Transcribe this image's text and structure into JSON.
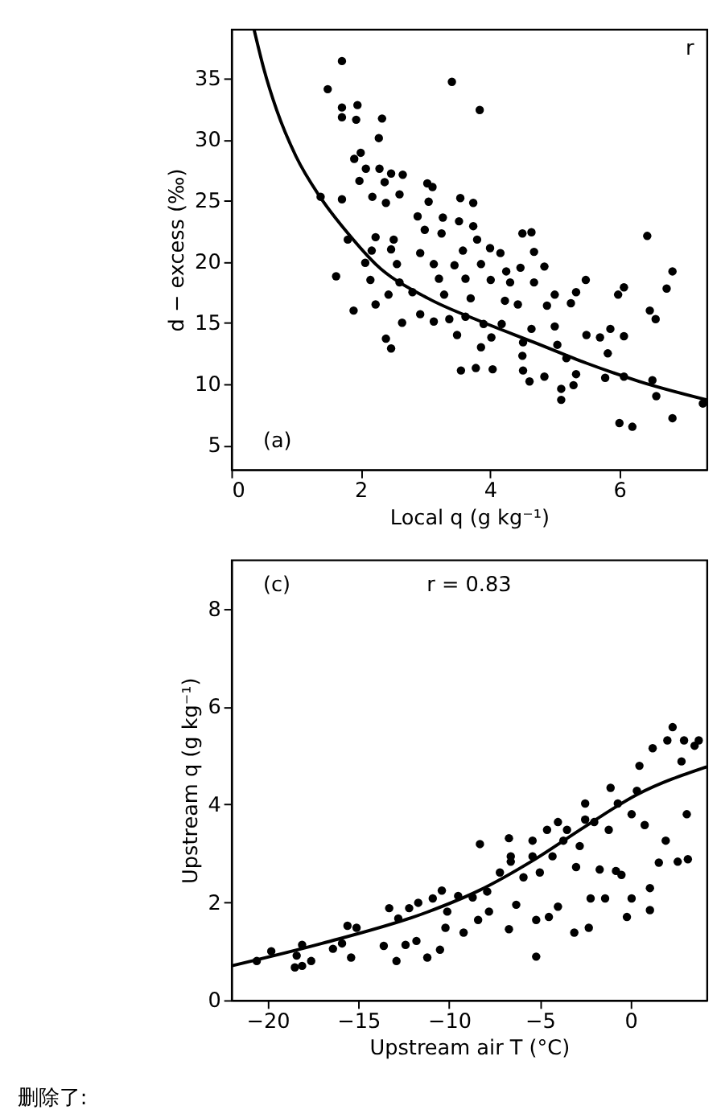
{
  "chart_data": [
    {
      "type": "scatter",
      "xlabel": "Local q (g kg⁻¹)",
      "ylabel": "d − excess (‰)",
      "xlim": [
        0,
        7.35
      ],
      "ylim": [
        3,
        39
      ],
      "xticks": [
        0,
        2,
        4,
        6
      ],
      "yticks": [
        5,
        10,
        15,
        20,
        25,
        30,
        35
      ],
      "grid": false,
      "marker": "circle",
      "annotations": [
        "r",
        "(a)"
      ],
      "series": [
        {
          "type": "scatter",
          "color": "#000000",
          "x": [
            1.71,
            1.49,
            3.41,
            3.84,
            1.71,
            1.95,
            1.71,
            1.93,
            2.33,
            2.28,
            2.0,
            1.9,
            2.08,
            1.98,
            2.29,
            2.47,
            2.65,
            2.37,
            1.38,
            1.71,
            2.18,
            2.39,
            2.6,
            3.03,
            3.11,
            3.05,
            3.54,
            3.74,
            2.88,
            3.27,
            3.52,
            3.74,
            1.8,
            2.23,
            2.51,
            2.99,
            3.25,
            3.8,
            4.5,
            4.64,
            6.43,
            2.17,
            2.47,
            2.92,
            3.58,
            4.0,
            4.16,
            4.68,
            2.07,
            2.56,
            3.13,
            3.45,
            3.86,
            4.25,
            4.47,
            4.84,
            5.48,
            6.82,
            1.62,
            2.15,
            2.6,
            3.21,
            3.62,
            4.01,
            4.31,
            4.68,
            5.0,
            5.33,
            6.07,
            6.73,
            2.43,
            2.8,
            3.29,
            3.7,
            4.23,
            4.43,
            4.88,
            5.25,
            5.98,
            1.89,
            2.23,
            2.92,
            3.13,
            3.37,
            3.62,
            3.9,
            4.18,
            4.64,
            5.0,
            6.47,
            6.56,
            2.64,
            2.39,
            2.47,
            3.49,
            4.02,
            4.51,
            5.04,
            5.49,
            5.7,
            5.86,
            6.07,
            5.18,
            5.82,
            3.86,
            4.5,
            3.55,
            3.78,
            4.04,
            4.51,
            4.84,
            5.33,
            5.78,
            6.07,
            6.51,
            4.61,
            5.1,
            5.29,
            5.1,
            6.57,
            7.29,
            6.0,
            6.2,
            6.82
          ],
          "values": [
            36.4,
            34.1,
            34.7,
            32.4,
            32.6,
            32.8,
            31.8,
            31.6,
            31.7,
            30.1,
            28.9,
            28.4,
            27.6,
            26.6,
            27.6,
            27.2,
            27.1,
            26.5,
            25.3,
            25.1,
            25.3,
            24.8,
            25.5,
            26.4,
            26.1,
            24.9,
            25.2,
            24.8,
            23.7,
            23.6,
            23.3,
            22.9,
            21.8,
            22.0,
            21.8,
            22.6,
            22.3,
            21.8,
            22.3,
            22.4,
            22.1,
            20.9,
            21.0,
            20.7,
            20.9,
            21.1,
            20.7,
            20.8,
            19.9,
            19.8,
            19.8,
            19.7,
            19.8,
            19.2,
            19.5,
            19.6,
            18.5,
            19.2,
            18.8,
            18.5,
            18.3,
            18.6,
            18.6,
            18.5,
            18.3,
            18.3,
            17.3,
            17.5,
            17.9,
            17.8,
            17.3,
            17.5,
            17.3,
            17.0,
            16.8,
            16.5,
            16.4,
            16.6,
            17.3,
            16.0,
            16.5,
            15.7,
            15.1,
            15.3,
            15.5,
            14.9,
            14.9,
            14.5,
            14.7,
            16.0,
            15.3,
            15.0,
            13.7,
            12.9,
            14.0,
            13.8,
            13.4,
            13.2,
            14.0,
            13.8,
            14.5,
            13.9,
            12.1,
            12.5,
            13.0,
            12.3,
            11.1,
            11.3,
            11.2,
            11.1,
            10.6,
            10.8,
            10.5,
            10.6,
            10.3,
            10.2,
            9.6,
            9.9,
            8.7,
            9.0,
            8.4,
            6.8,
            6.5,
            7.2
          ]
        },
        {
          "type": "line",
          "marker": "none",
          "color": "#000000",
          "line_style": "solid",
          "x": [
            0.35,
            0.5,
            0.7,
            1.0,
            1.37,
            1.82,
            2.23,
            3.04,
            3.86,
            4.68,
            5.49,
            6.31,
            7.35
          ],
          "values": [
            39,
            35.8,
            32.4,
            28.6,
            25.3,
            22.2,
            19.8,
            17.0,
            15.1,
            13.4,
            11.7,
            10.2,
            8.7
          ]
        }
      ]
    },
    {
      "type": "scatter",
      "xlabel": "Upstream air T (°C)",
      "ylabel": "Upstream q (g kg⁻¹)",
      "xlim": [
        -22,
        4.2
      ],
      "ylim": [
        0,
        9
      ],
      "xticks": [
        -20,
        -15,
        -10,
        -5,
        0
      ],
      "yticks": [
        0,
        2,
        4,
        6,
        8
      ],
      "grid": false,
      "marker": "circle",
      "annotations": [
        "(c)",
        "r = 0.83",
        "删除了:"
      ],
      "series": [
        {
          "type": "scatter",
          "color": "#000000",
          "x": [
            -20.6,
            -19.8,
            -18.4,
            -18.1,
            -18.5,
            -18.1,
            -17.6,
            -16.4,
            -15.9,
            -15.6,
            -15.1,
            -15.4,
            -13.6,
            -13.3,
            -12.9,
            -12.8,
            -12.4,
            -12.2,
            -11.7,
            -11.8,
            -10.9,
            -11.2,
            -10.5,
            -10.4,
            -10.2,
            -10.1,
            -9.5,
            -9.2,
            -8.7,
            -8.4,
            -8.3,
            -7.9,
            -7.8,
            -7.2,
            -6.7,
            -6.7,
            -6.6,
            -6.3,
            -5.9,
            -5.4,
            -5.2,
            -5.2,
            -5.0,
            -4.6,
            -4.5,
            -4.3,
            -4.0,
            -3.7,
            -3.5,
            -3.1,
            -3.0,
            -2.8,
            -2.5,
            -2.3,
            -2.2,
            -2.0,
            -1.7,
            -1.4,
            -1.2,
            -1.1,
            -0.8,
            -0.7,
            -0.5,
            -0.2,
            0.06,
            0.35,
            0.49,
            0.78,
            1.07,
            1.07,
            1.22,
            1.56,
            1.94,
            2.03,
            2.32,
            2.6,
            3.1,
            3.16,
            2.95,
            3.53,
            3.76,
            2.81,
            0.06,
            -2.5,
            -4.0,
            -6.6,
            -5.4
          ],
          "values": [
            0.8,
            1.0,
            0.91,
            1.13,
            0.67,
            0.7,
            0.8,
            1.05,
            1.16,
            1.52,
            1.48,
            0.87,
            1.11,
            1.88,
            0.8,
            1.67,
            1.13,
            1.88,
            1.99,
            1.21,
            2.08,
            0.87,
            1.03,
            2.24,
            1.48,
            1.81,
            2.13,
            1.38,
            2.1,
            1.64,
            3.19,
            2.22,
            1.81,
            2.61,
            1.45,
            3.31,
            2.94,
            1.95,
            2.51,
            3.26,
            0.89,
            1.64,
            2.61,
            3.48,
            1.7,
            2.94,
            1.91,
            3.26,
            3.48,
            1.38,
            2.72,
            3.15,
            4.02,
            1.48,
            2.08,
            3.64,
            2.67,
            2.08,
            3.48,
            4.34,
            2.64,
            4.02,
            2.56,
            1.7,
            2.08,
            4.28,
            4.79,
            3.58,
            2.29,
            1.84,
            5.15,
            2.81,
            3.26,
            5.31,
            5.58,
            2.83,
            3.8,
            2.88,
            5.31,
            5.2,
            5.31,
            4.88,
            3.8,
            3.69,
            3.64,
            2.83,
            2.94
          ]
        },
        {
          "type": "line",
          "marker": "none",
          "color": "#000000",
          "line_style": "solid",
          "x": [
            -22,
            -17.0,
            -11.2,
            -8.3,
            -5.4,
            -2.5,
            0.35,
            4.2
          ],
          "values": [
            0.7,
            1.16,
            1.8,
            2.25,
            2.85,
            3.55,
            4.2,
            4.77
          ]
        }
      ]
    }
  ]
}
